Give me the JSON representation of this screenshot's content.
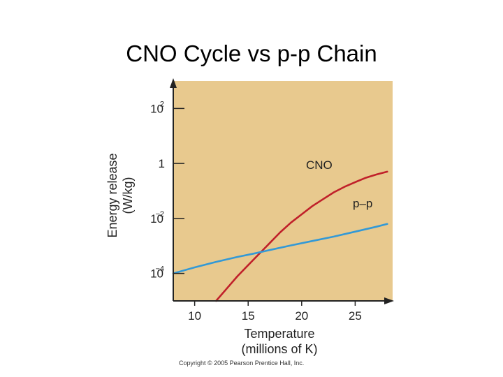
{
  "slide": {
    "title": "CNO Cycle vs p-p Chain",
    "copyright": "Copyright © 2005 Pearson Prentice Hall, Inc."
  },
  "colors": {
    "plot_background": "#e8c98e",
    "axis": "#222222",
    "cno_line": "#c0202a",
    "pp_line": "#3399d6"
  },
  "chart_data": {
    "type": "line",
    "title": "",
    "xlabel": "Temperature",
    "xlabel_units": "(millions of K)",
    "ylabel": "Energy release",
    "ylabel_units": "(W/kg)",
    "y_scale": "log",
    "xlim": [
      8,
      28.5
    ],
    "ylim_exponent": [
      -5,
      3
    ],
    "x_ticks": [
      {
        "value": 10,
        "label": "10"
      },
      {
        "value": 15,
        "label": "15"
      },
      {
        "value": 20,
        "label": "20"
      },
      {
        "value": 25,
        "label": "25"
      }
    ],
    "y_ticks": [
      {
        "exponent": 2,
        "base": "10",
        "sup": "2"
      },
      {
        "exponent": 0,
        "base": "1",
        "sup": ""
      },
      {
        "exponent": -2,
        "base": "10",
        "sup": "−2"
      },
      {
        "exponent": -4,
        "base": "10",
        "sup": "−4"
      }
    ],
    "series": [
      {
        "name": "CNO",
        "label": "CNO",
        "x": [
          12.0,
          13.0,
          14.0,
          15.0,
          15.5,
          16.0,
          17.0,
          18.0,
          19.0,
          20.0,
          21.0,
          22.0,
          23.0,
          24.0,
          25.0,
          26.0,
          27.0,
          28.0
        ],
        "log_y": [
          -5.0,
          -4.55,
          -4.1,
          -3.7,
          -3.5,
          -3.3,
          -2.9,
          -2.5,
          -2.15,
          -1.85,
          -1.55,
          -1.3,
          -1.05,
          -0.85,
          -0.68,
          -0.52,
          -0.4,
          -0.3
        ]
      },
      {
        "name": "p-p",
        "label": "p–p",
        "x": [
          8.0,
          10.0,
          12.0,
          14.0,
          15.5,
          17.0,
          19.0,
          21.0,
          23.0,
          25.0,
          27.0,
          28.0
        ],
        "log_y": [
          -4.0,
          -3.78,
          -3.58,
          -3.4,
          -3.28,
          -3.15,
          -2.98,
          -2.82,
          -2.66,
          -2.48,
          -2.3,
          -2.2
        ]
      }
    ]
  }
}
